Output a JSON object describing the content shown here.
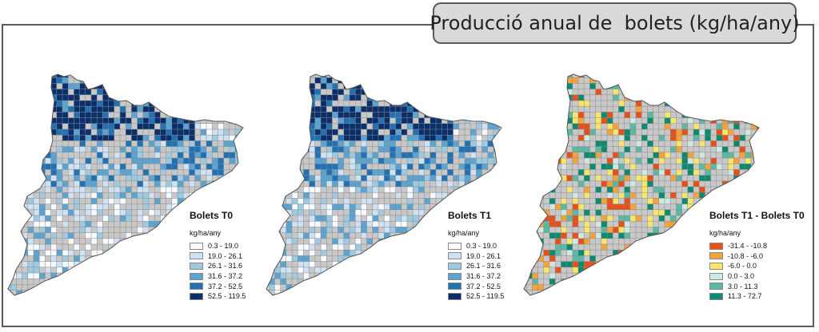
{
  "title": "Producció anual de  bolets (kg/ha/any)",
  "colors": {
    "land": "#c8c8c8",
    "grid": "#8a8a8a",
    "outline": "#555555"
  },
  "panels": [
    {
      "id": "t0",
      "legend_title": "Bolets T0",
      "unit": "kg/ha/any",
      "classes": [
        {
          "label": "0.3 - 19.0",
          "color": "#f7fbff"
        },
        {
          "label": "19.0 - 26.1",
          "color": "#d0e1f2"
        },
        {
          "label": "26.1 - 31.6",
          "color": "#9ecae1"
        },
        {
          "label": "31.6 - 37.2",
          "color": "#5ba3d0"
        },
        {
          "label": "37.2 - 52.5",
          "color": "#2171b5"
        },
        {
          "label": "52.5 - 119.5",
          "color": "#0b2f6b"
        }
      ]
    },
    {
      "id": "t1",
      "legend_title": "Bolets T1",
      "unit": "kg/ha/any",
      "classes": [
        {
          "label": "0.3 - 19.0",
          "color": "#f7fbff"
        },
        {
          "label": "19.0 - 26.1",
          "color": "#d0e1f2"
        },
        {
          "label": "26.1 - 31.6",
          "color": "#9ecae1"
        },
        {
          "label": "31.6 - 37.2",
          "color": "#5ba3d0"
        },
        {
          "label": "37.2 - 52.5",
          "color": "#2171b5"
        },
        {
          "label": "52.5 - 119.5",
          "color": "#0b2f6b"
        }
      ]
    },
    {
      "id": "diff",
      "legend_title": "Bolets T1 - Bolets T0",
      "unit": "kg/ha/any",
      "classes": [
        {
          "label": "-31.4 - -10.8",
          "color": "#e8501a"
        },
        {
          "label": "-10.8 - -6.0",
          "color": "#f4a23c"
        },
        {
          "label": "-6.0 - 0.0",
          "color": "#f7e66a"
        },
        {
          "label": "0.0 - 3.0",
          "color": "#cfe8e2"
        },
        {
          "label": "3.0 - 11.3",
          "color": "#5cb8a4"
        },
        {
          "label": "11.3 - 72.7",
          "color": "#0b8a6e"
        }
      ]
    }
  ]
}
